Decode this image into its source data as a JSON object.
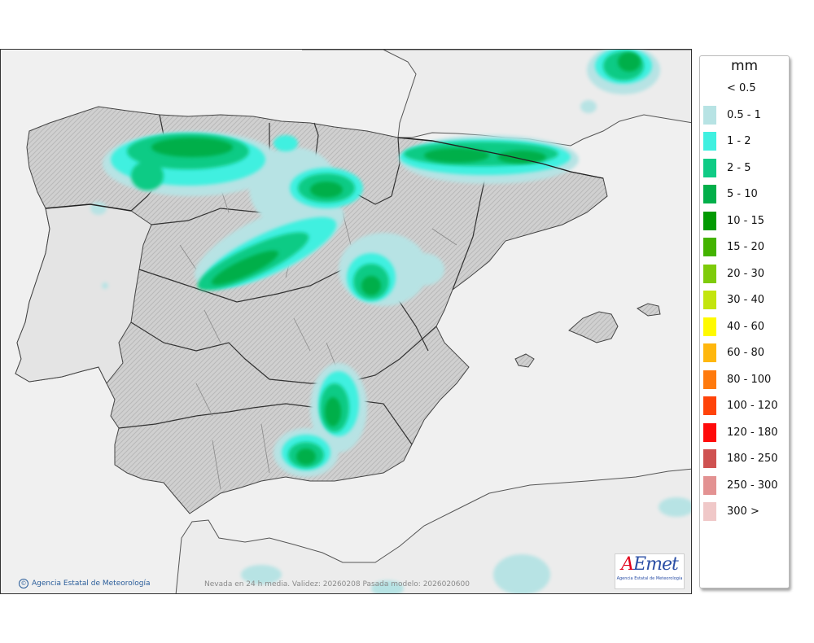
{
  "map": {
    "caption": "Nevada en 24 h media. Validez: 20260208 Pasada modelo: 2026020600",
    "copyright": "Agencia Estatal de Meteorología",
    "logo_text": "AEmet",
    "logo_subtitle": "Agencia Estatal de Meteorología",
    "land_color": "#d4d4d4",
    "sea_color": "#f0f0f0"
  },
  "legend": {
    "unit": "mm",
    "items": [
      {
        "label": "< 0.5",
        "color": "#ffffff"
      },
      {
        "label": "0.5 - 1",
        "color": "#b7e3e4"
      },
      {
        "label": "1 - 2",
        "color": "#3ff0e0"
      },
      {
        "label": "2 - 5",
        "color": "#0fcb85"
      },
      {
        "label": "5 - 10",
        "color": "#02af4a"
      },
      {
        "label": "10 - 15",
        "color": "#029a02"
      },
      {
        "label": "15 - 20",
        "color": "#43b300"
      },
      {
        "label": "20 - 30",
        "color": "#7ecb0a"
      },
      {
        "label": "30 - 40",
        "color": "#c3e50d"
      },
      {
        "label": "40 - 60",
        "color": "#fffa00"
      },
      {
        "label": "60 - 80",
        "color": "#ffb70d"
      },
      {
        "label": "80 - 100",
        "color": "#ff7a0d"
      },
      {
        "label": "100 - 120",
        "color": "#ff4309"
      },
      {
        "label": "120 - 180",
        "color": "#ff0a0a"
      },
      {
        "label": "180 - 250",
        "color": "#cf5251"
      },
      {
        "label": "250 - 300",
        "color": "#e39292"
      },
      {
        "label": "300 >",
        "color": "#f0c8c8"
      }
    ]
  }
}
